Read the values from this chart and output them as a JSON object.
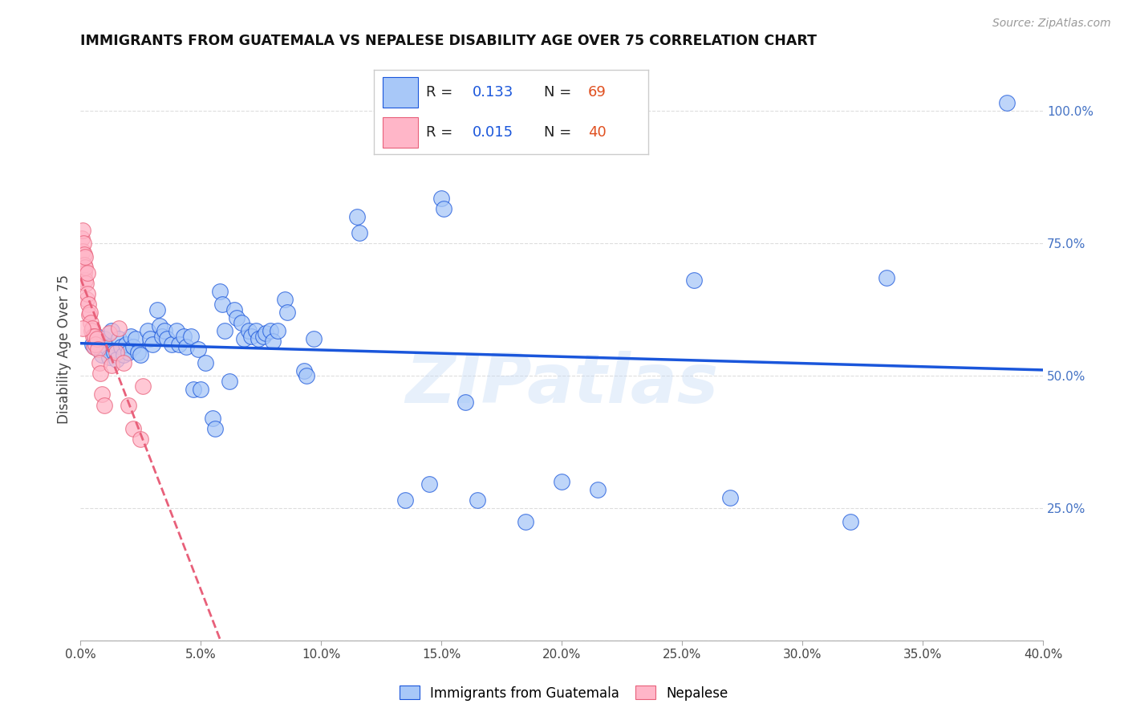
{
  "title": "IMMIGRANTS FROM GUATEMALA VS NEPALESE DISABILITY AGE OVER 75 CORRELATION CHART",
  "source": "Source: ZipAtlas.com",
  "ylabel": "Disability Age Over 75",
  "legend_label_blue": "Immigrants from Guatemala",
  "legend_label_pink": "Nepalese",
  "blue_color": "#a8c8f8",
  "pink_color": "#ffb6c8",
  "blue_line_color": "#1a56db",
  "pink_line_color": "#e8607a",
  "blue_scatter": [
    [
      0.5,
      56.0
    ],
    [
      0.6,
      55.5
    ],
    [
      0.7,
      57.5
    ],
    [
      0.8,
      56.0
    ],
    [
      0.9,
      54.0
    ],
    [
      1.0,
      57.0
    ],
    [
      1.1,
      55.5
    ],
    [
      1.2,
      53.5
    ],
    [
      1.3,
      58.5
    ],
    [
      1.4,
      54.5
    ],
    [
      1.5,
      53.0
    ],
    [
      1.6,
      57.0
    ],
    [
      1.7,
      55.5
    ],
    [
      1.8,
      54.0
    ],
    [
      1.9,
      56.0
    ],
    [
      2.0,
      54.5
    ],
    [
      2.1,
      57.5
    ],
    [
      2.2,
      55.5
    ],
    [
      2.3,
      57.0
    ],
    [
      2.4,
      54.5
    ],
    [
      2.5,
      54.0
    ],
    [
      2.8,
      58.5
    ],
    [
      2.9,
      57.0
    ],
    [
      3.0,
      56.0
    ],
    [
      3.2,
      62.5
    ],
    [
      3.3,
      59.5
    ],
    [
      3.4,
      57.5
    ],
    [
      3.5,
      58.5
    ],
    [
      3.6,
      57.0
    ],
    [
      3.8,
      56.0
    ],
    [
      4.0,
      58.5
    ],
    [
      4.1,
      56.0
    ],
    [
      4.3,
      57.5
    ],
    [
      4.4,
      55.5
    ],
    [
      4.6,
      57.5
    ],
    [
      4.7,
      47.5
    ],
    [
      4.9,
      55.0
    ],
    [
      5.0,
      47.5
    ],
    [
      5.2,
      52.5
    ],
    [
      5.8,
      66.0
    ],
    [
      5.9,
      63.5
    ],
    [
      6.0,
      58.5
    ],
    [
      6.4,
      62.5
    ],
    [
      6.5,
      61.0
    ],
    [
      6.7,
      60.0
    ],
    [
      6.8,
      57.0
    ],
    [
      7.0,
      58.5
    ],
    [
      7.1,
      57.5
    ],
    [
      7.3,
      58.5
    ],
    [
      7.4,
      57.0
    ],
    [
      7.6,
      57.5
    ],
    [
      7.7,
      58.0
    ],
    [
      7.9,
      58.5
    ],
    [
      8.0,
      56.5
    ],
    [
      8.2,
      58.5
    ],
    [
      8.5,
      64.5
    ],
    [
      8.6,
      62.0
    ],
    [
      9.3,
      51.0
    ],
    [
      9.4,
      50.0
    ],
    [
      9.7,
      57.0
    ],
    [
      11.5,
      80.0
    ],
    [
      11.6,
      77.0
    ],
    [
      15.0,
      83.5
    ],
    [
      15.1,
      81.5
    ],
    [
      5.5,
      42.0
    ],
    [
      5.6,
      40.0
    ],
    [
      14.5,
      29.5
    ],
    [
      16.5,
      26.5
    ],
    [
      18.5,
      22.5
    ],
    [
      25.5,
      68.0
    ],
    [
      27.0,
      27.0
    ],
    [
      32.0,
      22.5
    ],
    [
      33.5,
      68.5
    ],
    [
      6.2,
      49.0
    ],
    [
      13.5,
      26.5
    ],
    [
      16.0,
      45.0
    ],
    [
      20.0,
      30.0
    ],
    [
      21.5,
      28.5
    ],
    [
      38.5,
      101.5
    ]
  ],
  "pink_scatter": [
    [
      0.05,
      76.0
    ],
    [
      0.08,
      73.5
    ],
    [
      0.1,
      77.5
    ],
    [
      0.12,
      75.0
    ],
    [
      0.15,
      73.0
    ],
    [
      0.16,
      71.0
    ],
    [
      0.17,
      69.5
    ],
    [
      0.18,
      68.0
    ],
    [
      0.2,
      70.5
    ],
    [
      0.22,
      67.5
    ],
    [
      0.25,
      64.5
    ],
    [
      0.3,
      65.5
    ],
    [
      0.32,
      63.5
    ],
    [
      0.35,
      61.5
    ],
    [
      0.4,
      62.0
    ],
    [
      0.42,
      60.0
    ],
    [
      0.45,
      58.5
    ],
    [
      0.5,
      59.0
    ],
    [
      0.52,
      57.5
    ],
    [
      0.55,
      55.5
    ],
    [
      0.6,
      57.5
    ],
    [
      0.62,
      56.0
    ],
    [
      0.7,
      57.0
    ],
    [
      0.72,
      55.0
    ],
    [
      0.8,
      52.5
    ],
    [
      0.82,
      50.5
    ],
    [
      0.9,
      46.5
    ],
    [
      1.0,
      44.5
    ],
    [
      1.2,
      58.0
    ],
    [
      1.3,
      52.0
    ],
    [
      1.5,
      54.5
    ],
    [
      1.6,
      59.0
    ],
    [
      1.8,
      52.5
    ],
    [
      2.0,
      44.5
    ],
    [
      2.2,
      40.0
    ],
    [
      2.5,
      38.0
    ],
    [
      0.1,
      59.0
    ],
    [
      0.2,
      72.5
    ],
    [
      0.3,
      69.5
    ],
    [
      2.6,
      48.0
    ]
  ],
  "xlim": [
    0.0,
    40.0
  ],
  "ylim": [
    0.0,
    110.0
  ],
  "ytick_positions": [
    0.0,
    25.0,
    50.0,
    75.0,
    100.0
  ],
  "ytick_labels_right": [
    "",
    "25.0%",
    "50.0%",
    "75.0%",
    "100.0%"
  ],
  "xtick_positions": [
    0.0,
    5.0,
    10.0,
    15.0,
    20.0,
    25.0,
    30.0,
    35.0,
    40.0
  ],
  "xtick_labels": [
    "0.0%",
    "5.0%",
    "10.0%",
    "15.0%",
    "20.0%",
    "25.0%",
    "30.0%",
    "35.0%",
    "40.0%"
  ],
  "watermark": "ZIPatlas",
  "background_color": "#ffffff",
  "grid_color": "#dddddd",
  "title_color": "#111111",
  "axis_label_color": "#444444",
  "tick_color": "#444444",
  "right_tick_color": "#4472c4",
  "source_color": "#999999"
}
